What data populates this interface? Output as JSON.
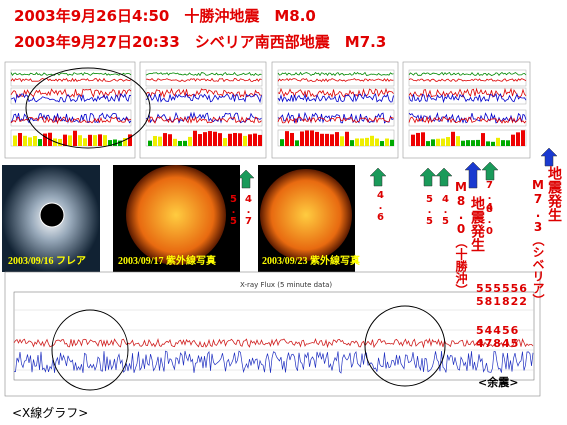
{
  "header": {
    "line1": "2003年9月26日4:50　十勝沖地震　M8.0",
    "line2": "2003年9月27日20:33　シベリア南西部地震　M7.3"
  },
  "photos": [
    {
      "caption": "2003/09/16 フレア"
    },
    {
      "caption": "2003/09/17 紫外線写真"
    },
    {
      "caption": "2003/09/23 紫外線写真"
    }
  ],
  "magnitudes": [
    "5.5",
    "4.7",
    "4.6",
    "5.5",
    "4.5",
    "7.4",
    "8.0"
  ],
  "events": [
    {
      "magnitude": "M8.0（十勝沖）",
      "label": "地震発生"
    },
    {
      "magnitude": "M7.3（シベリア）",
      "label": "地震発生"
    }
  ],
  "aftershocks": {
    "row1": "555556",
    "row2": "581822",
    "row3": "54456",
    "row4": "47845",
    "label": "<余震>"
  },
  "xray": {
    "title": "X-ray Flux (5 minute data)",
    "caption": "<X線グラフ>"
  }
}
